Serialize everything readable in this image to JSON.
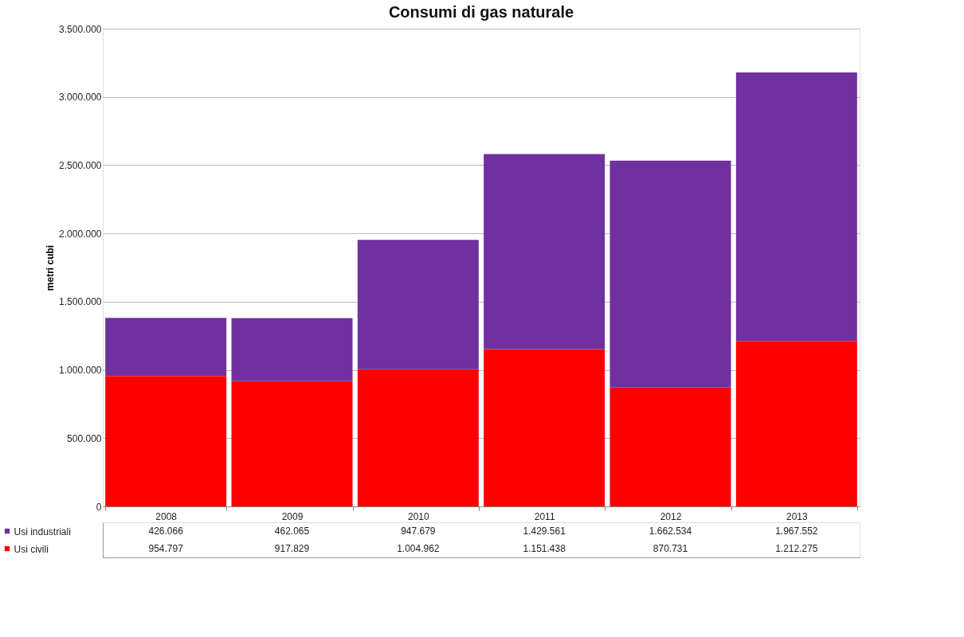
{
  "chart_data": {
    "type": "bar",
    "title": "Consumi di gas naturale",
    "ylabel": "metri cubi",
    "categories": [
      "2008",
      "2009",
      "2010",
      "2011",
      "2012",
      "2013"
    ],
    "stacked": true,
    "series": [
      {
        "name": "Usi civili",
        "color": "#ff0000",
        "values": [
          954797,
          917829,
          1004962,
          1151438,
          870731,
          1212275
        ],
        "value_labels": [
          "954.797",
          "917.829",
          "1.004.962",
          "1.151.438",
          "870.731",
          "1.212.275"
        ]
      },
      {
        "name": "Usi industriali",
        "color": "#7030a0",
        "values": [
          426066,
          462065,
          947679,
          1429561,
          1662534,
          1967552
        ],
        "value_labels": [
          "426.066",
          "462.065",
          "947.679",
          "1.429.561",
          "1.662.534",
          "1.967.552"
        ]
      }
    ],
    "ylim": [
      0,
      3500000
    ],
    "yticks": [
      0,
      {
        "value": 500000,
        "label": "500.000"
      },
      {
        "value": 1000000,
        "label": "1.000.000"
      },
      {
        "value": 1500000,
        "label": "1.500.000"
      },
      {
        "value": 2000000,
        "label": "2.000.000"
      },
      {
        "value": 2500000,
        "label": "2.500.000"
      },
      {
        "value": 3000000,
        "label": "3.000.000"
      },
      {
        "value": 3500000,
        "label": "3.500.000"
      }
    ],
    "grid": "y",
    "legend": "bottom left"
  }
}
